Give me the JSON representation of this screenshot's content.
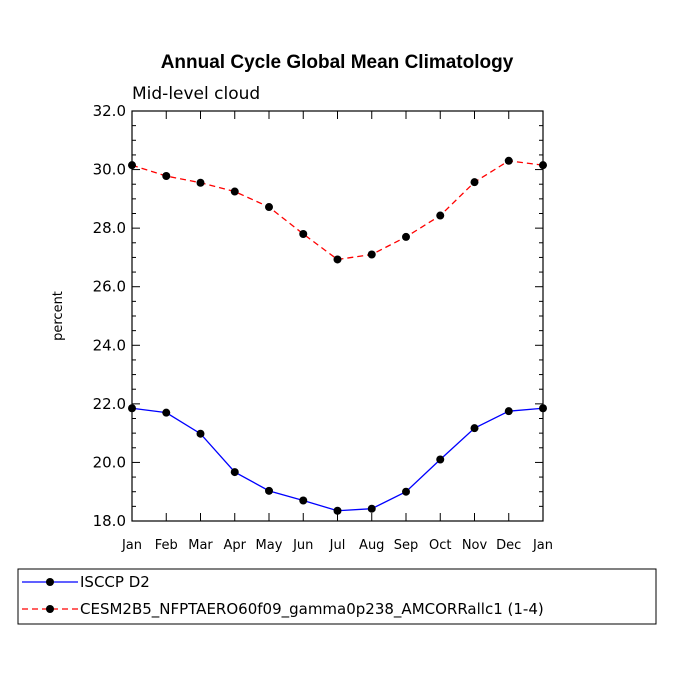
{
  "chart_data": {
    "type": "line",
    "title": "Annual Cycle Global Mean Climatology",
    "subtitle": "Mid-level cloud",
    "xlabel": "",
    "ylabel": "percent",
    "categories": [
      "Jan",
      "Feb",
      "Mar",
      "Apr",
      "May",
      "Jun",
      "Jul",
      "Aug",
      "Sep",
      "Oct",
      "Nov",
      "Dec",
      "Jan"
    ],
    "ylim": [
      18.0,
      32.0
    ],
    "yticks": [
      "18.0",
      "20.0",
      "22.0",
      "24.0",
      "26.0",
      "28.0",
      "30.0",
      "32.0"
    ],
    "series": [
      {
        "name": "ISCCP D2",
        "color": "#0000ff",
        "dash": "solid",
        "values": [
          21.85,
          21.7,
          20.98,
          19.67,
          19.03,
          18.7,
          18.35,
          18.42,
          19.0,
          20.1,
          21.17,
          21.75,
          21.85
        ]
      },
      {
        "name": "CESM2B5_NFPTAERO60f09_gamma0p238_AMCORRallc1 (1-4)",
        "color": "#ff0000",
        "dash": "dashed",
        "values": [
          30.15,
          29.78,
          29.55,
          29.25,
          28.72,
          27.8,
          26.93,
          27.1,
          27.7,
          28.43,
          29.57,
          30.3,
          30.15
        ]
      }
    ]
  }
}
